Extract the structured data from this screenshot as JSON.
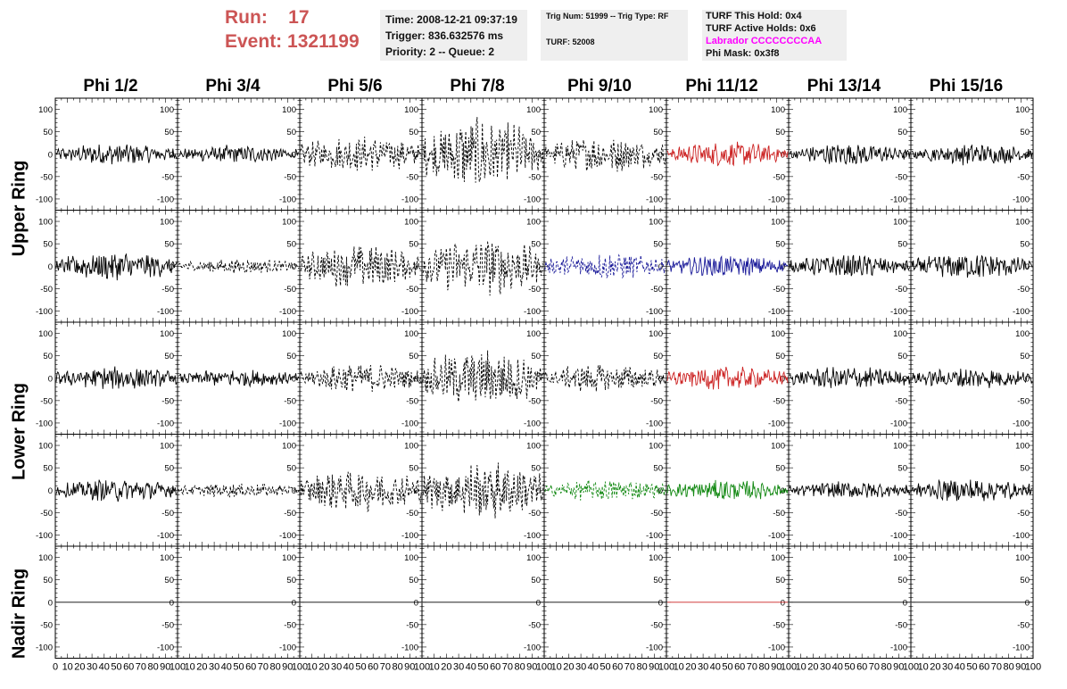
{
  "header": {
    "run_label": "Run:",
    "run_value": "17",
    "event_label": "Event:",
    "event_value": "1321199",
    "time": "Time: 2008-12-21 09:37:19",
    "trigger": "Trigger: 836.632576 ms",
    "priority": "Priority: 2 -- Queue: 2",
    "trig_num": "Trig Num: 51999 -- Trig Type: RF",
    "turf": "TURF: 52008",
    "turf_this_hold": "TURF This Hold: 0x4",
    "turf_active_holds": "TURF Active Holds: 0x6",
    "labrador": "Labrador CCCCCCCCAA",
    "phi_mask": "Phi Mask: 0x3f8"
  },
  "columns": [
    "Phi 1/2",
    "Phi 3/4",
    "Phi 5/6",
    "Phi 7/8",
    "Phi 9/10",
    "Phi 11/12",
    "Phi 13/14",
    "Phi 15/16"
  ],
  "rows": [
    "Upper Ring",
    "Upper Ring",
    "Lower Ring",
    "Lower Ring",
    "Nadir Ring"
  ],
  "row_labels": [
    {
      "text": "Upper Ring"
    },
    {
      "text": "Lower Ring"
    },
    {
      "text": "Nadir Ring"
    }
  ],
  "colors": {
    "run": "#cc5555",
    "red": "#cc2222",
    "blue": "#1a1a99",
    "green": "#118811",
    "magenta": "#ff00ff"
  },
  "chart_data": {
    "type": "line",
    "ylim": [
      -125,
      125
    ],
    "xlim": [
      0,
      100
    ],
    "y_ticks": [
      100,
      50,
      0,
      -50,
      -100
    ],
    "x_ticks": [
      0,
      10,
      20,
      30,
      40,
      50,
      60,
      70,
      80,
      90,
      100
    ],
    "x_tick_labels": [
      "0",
      "10",
      "20",
      "30",
      "40",
      "50",
      "60",
      "70",
      "80",
      "90",
      "100"
    ],
    "panels": [
      [
        {
          "style": "solid",
          "color": "#000",
          "amp": 15
        },
        {
          "style": "solid",
          "color": "#000",
          "amp": 13
        },
        {
          "style": "dashed",
          "color": "#000",
          "amp": 25
        },
        {
          "style": "dashed",
          "color": "#000",
          "amp": 50
        },
        {
          "style": "dashed",
          "color": "#000",
          "amp": 25
        },
        {
          "style": "solid",
          "color": "#cc2222",
          "amp": 17
        },
        {
          "style": "solid",
          "color": "#000",
          "amp": 15
        },
        {
          "style": "solid",
          "color": "#000",
          "amp": 15
        }
      ],
      [
        {
          "style": "solid",
          "color": "#000",
          "amp": 20
        },
        {
          "style": "dashed",
          "color": "#000",
          "amp": 10
        },
        {
          "style": "dashed",
          "color": "#000",
          "amp": 30
        },
        {
          "style": "dashed",
          "color": "#000",
          "amp": 40
        },
        {
          "style": "dashed",
          "color": "#1a1a99",
          "amp": 18
        },
        {
          "style": "solid",
          "color": "#1a1a99",
          "amp": 15
        },
        {
          "style": "solid",
          "color": "#000",
          "amp": 15
        },
        {
          "style": "solid",
          "color": "#000",
          "amp": 18
        }
      ],
      [
        {
          "style": "solid",
          "color": "#000",
          "amp": 16
        },
        {
          "style": "solid",
          "color": "#000",
          "amp": 12
        },
        {
          "style": "dashed",
          "color": "#000",
          "amp": 20
        },
        {
          "style": "dashed",
          "color": "#000",
          "amp": 40
        },
        {
          "style": "dashed",
          "color": "#000",
          "amp": 20
        },
        {
          "style": "solid",
          "color": "#cc2222",
          "amp": 16
        },
        {
          "style": "solid",
          "color": "#000",
          "amp": 16
        },
        {
          "style": "solid",
          "color": "#000",
          "amp": 14
        }
      ],
      [
        {
          "style": "solid",
          "color": "#000",
          "amp": 16
        },
        {
          "style": "dashed",
          "color": "#000",
          "amp": 10
        },
        {
          "style": "dashed",
          "color": "#000",
          "amp": 30
        },
        {
          "style": "dashed",
          "color": "#000",
          "amp": 40
        },
        {
          "style": "dashed",
          "color": "#118811",
          "amp": 15
        },
        {
          "style": "solid",
          "color": "#118811",
          "amp": 14
        },
        {
          "style": "solid",
          "color": "#000",
          "amp": 12
        },
        {
          "style": "solid",
          "color": "#000",
          "amp": 16
        }
      ],
      [
        {
          "style": "flat",
          "color": "#000",
          "amp": 0
        },
        {
          "style": "flat",
          "color": "#000",
          "amp": 0
        },
        {
          "style": "flat",
          "color": "#000",
          "amp": 0
        },
        {
          "style": "flat",
          "color": "#000",
          "amp": 0
        },
        {
          "style": "flat",
          "color": "#000",
          "amp": 0
        },
        {
          "style": "flat",
          "color": "#cc2222",
          "amp": 0
        },
        {
          "style": "flat",
          "color": "#000",
          "amp": 0
        },
        {
          "style": "flat",
          "color": "#000",
          "amp": 0
        }
      ]
    ]
  }
}
